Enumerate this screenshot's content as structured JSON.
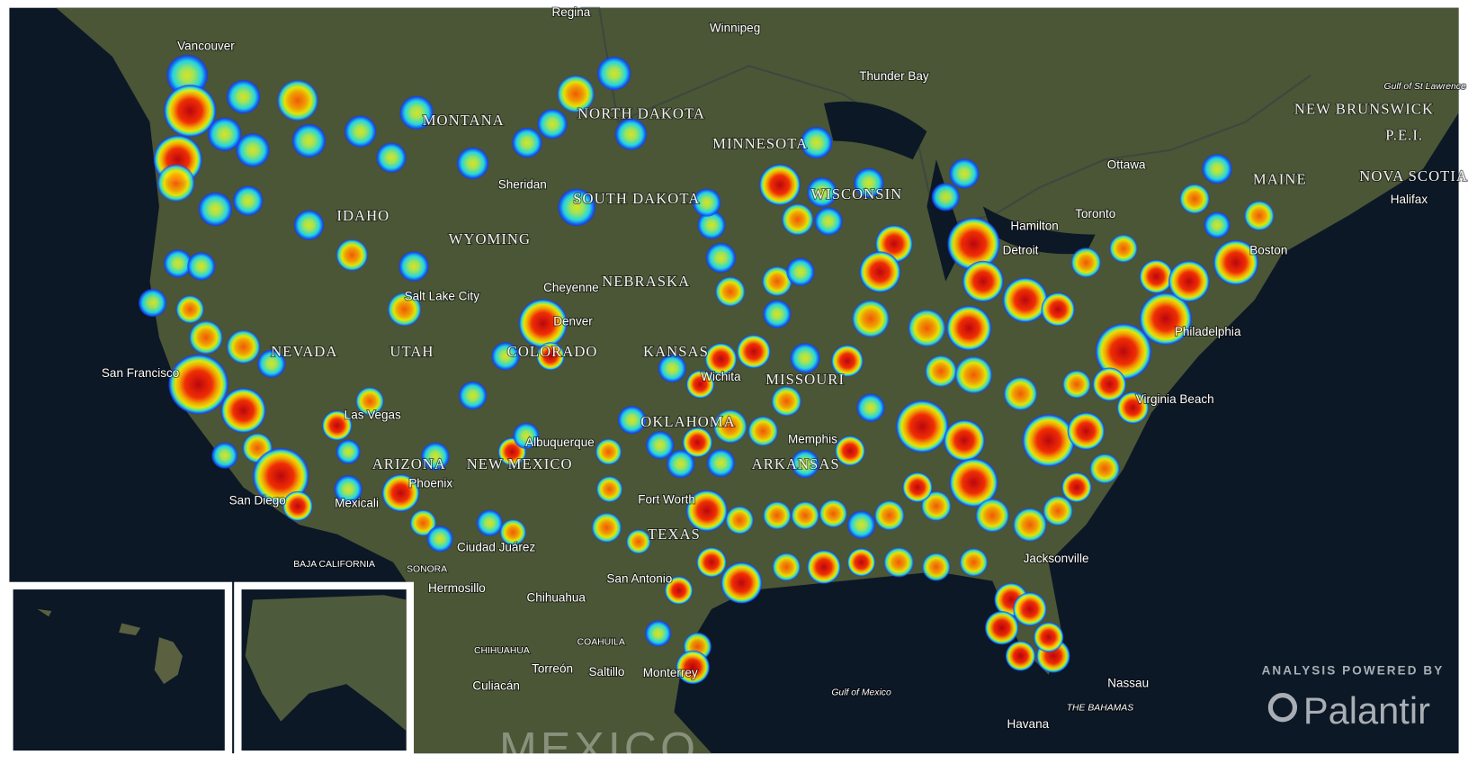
{
  "map": {
    "cities": [
      "Vancouver",
      "Winnipeg",
      "Regina",
      "Thunder Bay",
      "Ottawa",
      "Toronto",
      "Hamilton",
      "Halifax",
      "San Francisco",
      "Las Vegas",
      "Salt Lake City",
      "Denver",
      "Cheyenne",
      "Sheridan",
      "Phoenix",
      "San Diego",
      "Mexicali",
      "Albuquerque",
      "Ciudad Juárez",
      "Hermosillo",
      "Chihuahua",
      "Fort Worth",
      "San Antonio",
      "Jacksonville",
      "Philadelphia",
      "Virginia Beach",
      "Torreón",
      "Saltillo",
      "Monterrey",
      "Culiacán",
      "Nassau",
      "Havana",
      "Boston",
      "Detroit",
      "Memphis",
      "Wichita"
    ],
    "regions": [
      "NEW BRUNSWICK",
      "P.E.I.",
      "NOVA SCOTIA",
      "MAINE",
      "MONTANA",
      "NORTH DAKOTA",
      "MINNESOTA",
      "WISCONSIN",
      "SOUTH DAKOTA",
      "IDAHO",
      "WYOMING",
      "NEBRASKA",
      "NEVADA",
      "UTAH",
      "COLORADO",
      "KANSAS",
      "MISSOURI",
      "OKLAHOMA",
      "ARIZONA",
      "NEW MEXICO",
      "TEXAS",
      "ARKANSAS",
      "BAJA CALIFORNIA",
      "SONORA",
      "CHIHUAHUA",
      "COAHUILA"
    ],
    "waters": [
      "Gulf of Mexico",
      "Gulf of St Lawrence",
      "THE BAHAMAS"
    ],
    "country": "MEXICO"
  },
  "branding": {
    "caption": "ANALYSIS POWERED BY",
    "name": "Palantir"
  }
}
